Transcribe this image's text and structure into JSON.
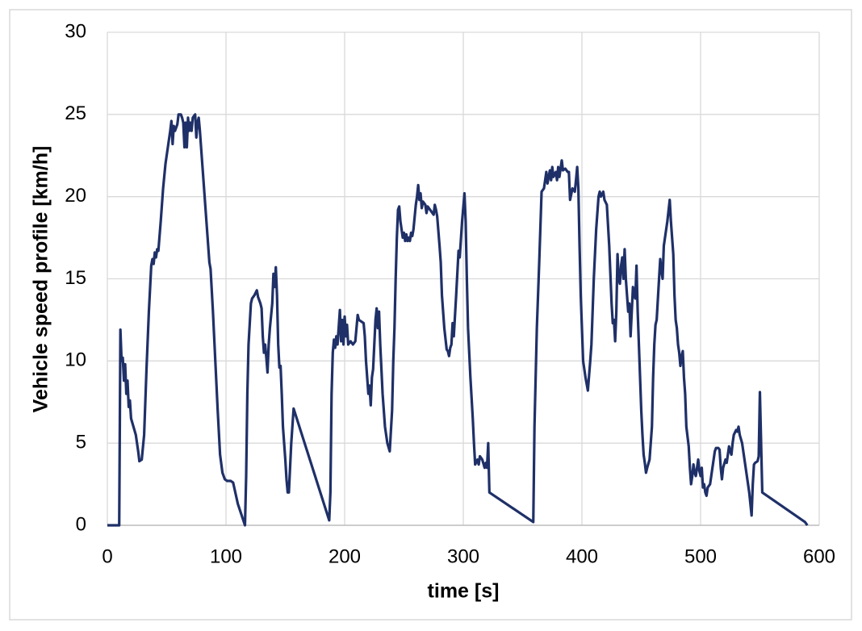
{
  "chart_data": {
    "type": "line",
    "xlabel": "time [s]",
    "ylabel": "Vehicle speed profile [km/h]",
    "color": "#1f3068",
    "grid": true,
    "xlim": [
      0,
      600
    ],
    "xticks": [
      0,
      100,
      200,
      300,
      400,
      500,
      600
    ],
    "ylim": [
      0,
      30
    ],
    "yticks": [
      0,
      5,
      10,
      15,
      20,
      25,
      30
    ],
    "x": [
      0,
      10,
      11,
      12,
      13,
      14,
      15,
      16,
      17,
      18,
      19,
      20,
      22,
      24,
      26,
      27,
      29,
      31,
      33,
      35,
      37,
      38,
      39,
      40,
      41,
      42,
      43,
      45,
      47,
      49,
      51,
      53,
      54,
      55,
      56,
      57,
      59,
      60,
      62,
      63,
      64,
      65,
      66,
      67,
      68,
      69,
      70,
      71,
      72,
      73,
      74,
      75,
      76,
      77,
      78,
      80,
      82,
      84,
      86,
      87,
      89,
      91,
      93,
      95,
      97,
      99,
      101,
      104,
      106,
      110,
      116,
      117,
      118,
      119,
      121,
      122,
      124,
      126,
      127,
      129,
      130,
      131,
      132,
      133,
      134,
      135,
      136,
      137,
      139,
      140,
      141,
      142,
      143,
      144,
      145,
      146,
      147,
      148,
      150,
      151,
      152,
      153,
      155,
      157,
      187,
      188,
      189,
      190,
      191,
      192,
      193,
      194,
      196,
      197,
      198,
      199,
      200,
      201,
      202,
      203,
      205,
      207,
      209,
      211,
      212,
      214,
      216,
      217,
      218,
      219,
      220,
      221,
      222,
      223,
      224,
      226,
      227,
      228,
      229,
      230,
      232,
      234,
      236,
      238,
      240,
      241,
      242,
      243,
      244,
      245,
      246,
      247,
      248,
      249,
      250,
      251,
      252,
      253,
      254,
      255,
      256,
      257,
      258,
      260,
      261,
      262,
      263,
      264,
      265,
      266,
      268,
      269,
      270,
      272,
      274,
      275,
      276,
      277,
      278,
      280,
      281,
      282,
      283,
      284,
      286,
      287,
      288,
      289,
      290,
      291,
      292,
      294,
      296,
      297,
      299,
      301,
      302,
      303,
      304,
      306,
      308,
      309,
      310,
      312,
      313,
      314,
      316,
      318,
      319,
      320,
      321,
      322,
      359,
      360,
      362,
      364,
      366,
      368,
      370,
      371,
      373,
      374,
      375,
      376,
      378,
      379,
      380,
      381,
      383,
      384,
      386,
      388,
      389,
      390,
      392,
      394,
      395,
      396,
      397,
      398,
      399,
      400,
      401,
      403,
      405,
      407,
      408,
      409,
      410,
      412,
      414,
      415,
      416,
      418,
      419,
      421,
      423,
      425,
      426,
      427,
      428,
      429,
      430,
      431,
      432,
      433,
      434,
      435,
      436,
      437,
      438,
      439,
      440,
      441,
      442,
      443,
      444,
      445,
      446,
      447,
      448,
      449,
      450,
      451,
      452,
      453,
      454,
      455,
      457,
      459,
      460,
      461,
      462,
      463,
      465,
      466,
      467,
      468,
      469,
      470,
      472,
      474,
      475,
      476,
      477,
      478,
      479,
      480,
      481,
      482,
      483,
      484,
      485,
      486,
      487,
      488,
      490,
      491,
      492,
      493,
      494,
      495,
      496,
      497,
      498,
      499,
      500,
      501,
      502,
      503,
      504,
      505,
      506,
      508,
      509,
      511,
      512,
      513,
      515,
      516,
      517,
      518,
      519,
      521,
      522,
      523,
      524,
      525,
      526,
      527,
      528,
      530,
      531,
      532,
      533,
      535,
      537,
      539,
      541,
      543,
      544,
      545,
      546,
      548,
      549,
      550,
      552,
      588,
      590
    ],
    "values": [
      0,
      0,
      11.9,
      10,
      10.2,
      8.8,
      9.8,
      8,
      8.8,
      7.2,
      7.6,
      6.5,
      6,
      5.5,
      4.5,
      3.9,
      4,
      5.5,
      9.5,
      13,
      15.8,
      16.2,
      15.9,
      16.6,
      16.3,
      16.8,
      16.7,
      18.5,
      20.5,
      22,
      23,
      24,
      24.6,
      23.2,
      24.3,
      24,
      24.4,
      25,
      25,
      24.8,
      24.5,
      23,
      24.5,
      23,
      24.8,
      24,
      24.5,
      24,
      24.8,
      24.9,
      25,
      23.6,
      24.5,
      24.8,
      24,
      22,
      20,
      18,
      16,
      15.6,
      13,
      10,
      7,
      4.3,
      3.2,
      2.8,
      2.7,
      2.7,
      2.6,
      1.3,
      0,
      3,
      8,
      11,
      13.5,
      13.8,
      14,
      14.3,
      13.9,
      13.5,
      13.2,
      11.5,
      10.5,
      11,
      10.2,
      9.3,
      11,
      12,
      13.5,
      15.3,
      14.5,
      15.7,
      14,
      11,
      9.6,
      9.7,
      8,
      6,
      4,
      2.8,
      2,
      2,
      5,
      7.1,
      0.3,
      2,
      8,
      10.5,
      11.3,
      10.8,
      11.5,
      11,
      13.1,
      11.2,
      12.5,
      11,
      12.7,
      11.5,
      12.2,
      11,
      11.2,
      11,
      11.2,
      12.8,
      12.5,
      12.4,
      12.3,
      11.5,
      10,
      9,
      8,
      8.5,
      7.3,
      9,
      9.5,
      12.5,
      13.2,
      12,
      13,
      11,
      8,
      6,
      5,
      4.5,
      7,
      10,
      12,
      15,
      17.5,
      19.2,
      19.4,
      18.5,
      18,
      17.5,
      17.8,
      17.3,
      17.7,
      17.3,
      17.5,
      17.3,
      17.8,
      17.6,
      18,
      19.5,
      20,
      20.7,
      19.8,
      20.2,
      19.3,
      19.7,
      19.5,
      19,
      19.4,
      19.2,
      19,
      18.9,
      19.5,
      19.2,
      18.8,
      17,
      16,
      14,
      13,
      12,
      10.7,
      10.6,
      10.3,
      10.8,
      11,
      12.3,
      11.5,
      14,
      16.7,
      16.3,
      18.5,
      20.2,
      18.5,
      15,
      12,
      9,
      6.5,
      5,
      3.7,
      4,
      3.7,
      4.2,
      4,
      3.5,
      3.8,
      3.5,
      5,
      2,
      0.2,
      6,
      12,
      16,
      20.3,
      20.5,
      21.5,
      20.8,
      21.6,
      21,
      21.8,
      21.2,
      21.5,
      21,
      21.8,
      21.2,
      22.2,
      21.6,
      21.7,
      21.5,
      21.5,
      19.8,
      20.5,
      20.3,
      21,
      21.8,
      20.5,
      17,
      14,
      12,
      10,
      9,
      8.2,
      10,
      11,
      13,
      15,
      18,
      20,
      20.3,
      20,
      20.3,
      19.8,
      19.5,
      17,
      13.5,
      12.3,
      12.5,
      11.2,
      13,
      16.5,
      15,
      14.7,
      15.8,
      16.3,
      15,
      16.8,
      15,
      14,
      13,
      13.5,
      11.5,
      13,
      14.5,
      14,
      13.8,
      15.8,
      13,
      11,
      9,
      7,
      5.5,
      4.3,
      3.8,
      3.2,
      3.5,
      4,
      6,
      9,
      11,
      12.2,
      12.5,
      15,
      16.2,
      15.5,
      15,
      17,
      17.5,
      18.5,
      19.8,
      18.5,
      17.5,
      16.5,
      14,
      12.5,
      12,
      11,
      10.5,
      9.7,
      10.3,
      10.6,
      9,
      8,
      6,
      4.8,
      3.5,
      2.5,
      3,
      3.7,
      3.2,
      3,
      3.5,
      4,
      3.3,
      3,
      3.5,
      2.3,
      2.5,
      2,
      1.8,
      2.3,
      2.5,
      3,
      4,
      4.5,
      4.7,
      4.7,
      4.6,
      3.5,
      2.8,
      3.5,
      4,
      3.8,
      4.3,
      4.8,
      4.5,
      4.3,
      5,
      5.5,
      5.8,
      5.7,
      6,
      5.5,
      5,
      4,
      3,
      2,
      0.6,
      2.5,
      3.7,
      3.8,
      3.9,
      4.2,
      8.1,
      2,
      0.2,
      0
    ]
  }
}
